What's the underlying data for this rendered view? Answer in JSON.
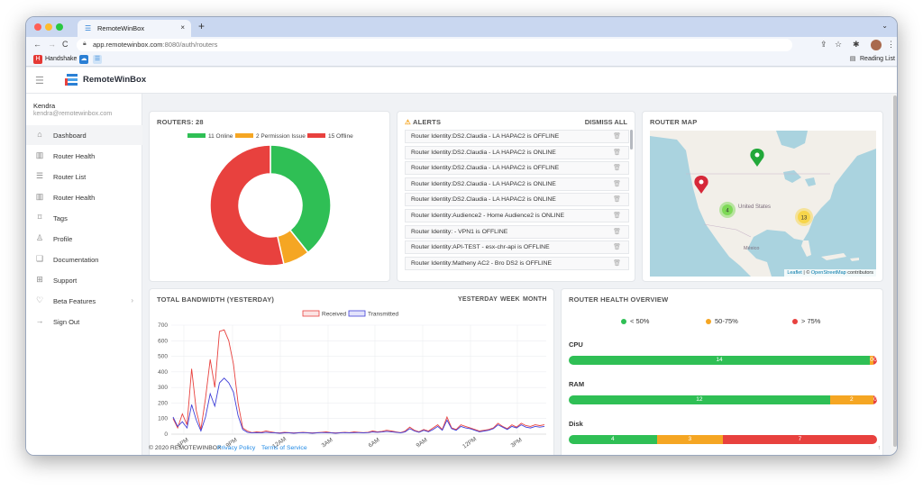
{
  "browser": {
    "tab_title": "RemoteWinBox",
    "new_tab": "+",
    "tab_close": "×",
    "url_host": "app.remotewinbox.com",
    "url_rest": ":8080/auth/routers",
    "bookmarks": [
      {
        "label": "Handshake",
        "icon": "handshake-icon",
        "color": "#e53935"
      }
    ],
    "reading_list": "Reading List"
  },
  "app": {
    "logo_text": "RemoteWinBox",
    "user": {
      "name": "Kendra",
      "email": "kendra@remotewinbox.com"
    },
    "menu": [
      {
        "label": "Dashboard",
        "icon": "home-icon",
        "glyph": "⌂",
        "active": true
      },
      {
        "label": "Router Health",
        "icon": "bar-chart-icon",
        "glyph": "▥",
        "active": false
      },
      {
        "label": "Router List",
        "icon": "list-icon",
        "glyph": "☰",
        "active": false
      },
      {
        "label": "Router Health",
        "icon": "bar-chart-icon",
        "glyph": "▥",
        "active": false
      },
      {
        "label": "Tags",
        "icon": "tag-icon",
        "glyph": "⌑",
        "active": false
      },
      {
        "label": "Profile",
        "icon": "user-icon",
        "glyph": "♙",
        "active": false
      },
      {
        "label": "Documentation",
        "icon": "book-icon",
        "glyph": "❑",
        "active": false
      },
      {
        "label": "Support",
        "icon": "support-icon",
        "glyph": "⊞",
        "active": false
      },
      {
        "label": "Beta Features",
        "icon": "bulb-icon",
        "glyph": "♡",
        "active": false,
        "chevron": "›"
      },
      {
        "label": "Sign Out",
        "icon": "sign-out-icon",
        "glyph": "→",
        "active": false
      }
    ]
  },
  "routers_card": {
    "title": "ROUTERS: 28",
    "legend": [
      {
        "label": "11 Online",
        "color": "#2fbf55"
      },
      {
        "label": "2 Permission Issue",
        "color": "#f5a623"
      },
      {
        "label": "15 Offline",
        "color": "#e8413e"
      }
    ]
  },
  "alerts_card": {
    "title": "ALERTS",
    "dismiss_label": "DISMISS ALL",
    "items": [
      "Router Identity:DS2.Claudia - LA HAPAC2 is OFFLINE",
      "Router Identity:DS2.Claudia - LA HAPAC2 is ONLINE",
      "Router Identity:DS2.Claudia - LA HAPAC2 is OFFLINE",
      "Router Identity:DS2.Claudia - LA HAPAC2 is ONLINE",
      "Router Identity:DS2.Claudia - LA HAPAC2 is ONLINE",
      "Router Identity:Audience2 - Home Audience2 is ONLINE",
      "Router Identity: - VPN1 is OFFLINE",
      "Router Identity:API-TEST - esx-chr-api is OFFLINE",
      "Router Identity:Matheny AC2 - Bro DS2 is OFFLINE"
    ]
  },
  "map_card": {
    "title": "ROUTER MAP",
    "labels": {
      "country": "United States",
      "mexico": "México"
    },
    "clusters": [
      {
        "count": "4",
        "color": "#7ed957"
      },
      {
        "count": "13",
        "color": "#f7d54a"
      }
    ],
    "attribution": {
      "leaflet": "Leaflet",
      "sep": " | © ",
      "osm": "OpenStreetMap",
      "tail": " contributors"
    }
  },
  "bandwidth_card": {
    "title": "TOTAL BANDWIDTH (YESTERDAY)",
    "controls": [
      "YESTERDAY",
      "WEEK",
      "MONTH"
    ]
  },
  "health_card": {
    "title": "ROUTER HEALTH OVERVIEW",
    "legend": [
      {
        "label": "< 50%",
        "color": "#2fbf55"
      },
      {
        "label": "50-75%",
        "color": "#f5a623"
      },
      {
        "label": "> 75%",
        "color": "#e8413e"
      }
    ],
    "rows": [
      {
        "name": "CPU",
        "segments": [
          {
            "value": 14,
            "color": "#2fbf55"
          },
          {
            "value": 0,
            "color": "#f5a623"
          },
          {
            "value": 0,
            "color": "#e8413e"
          }
        ]
      },
      {
        "name": "RAM",
        "segments": [
          {
            "value": 12,
            "color": "#2fbf55"
          },
          {
            "value": 2,
            "color": "#f5a623"
          },
          {
            "value": 0,
            "color": "#e8413e"
          }
        ]
      },
      {
        "name": "Disk",
        "segments": [
          {
            "value": 4,
            "color": "#2fbf55"
          },
          {
            "value": 3,
            "color": "#f5a623"
          },
          {
            "value": 7,
            "color": "#e8413e"
          }
        ]
      }
    ]
  },
  "footer": {
    "copyright": "© 2020 REMOTEWINBOX",
    "privacy": "Privacy Policy",
    "terms": "Terms of Service",
    "up_arrow": "↑"
  },
  "chart_data": [
    {
      "type": "pie",
      "title": "ROUTERS: 28",
      "labels": [
        "11 Online",
        "2 Permission Issue",
        "15 Offline"
      ],
      "values": [
        11,
        2,
        15
      ],
      "colors": [
        "#2fbf55",
        "#f5a623",
        "#e8413e"
      ],
      "donut": true,
      "legend": "top"
    },
    {
      "type": "line",
      "title": "TOTAL BANDWIDTH (YESTERDAY)",
      "x_ticks": [
        "6PM",
        "9PM",
        "12AM",
        "3AM",
        "6AM",
        "9AM",
        "12PM",
        "3PM"
      ],
      "ylim": [
        0,
        700
      ],
      "y_ticks": [
        0,
        100,
        200,
        300,
        400,
        500,
        600,
        700
      ],
      "legend": "top",
      "grid": true,
      "series": [
        {
          "name": "Received",
          "color": "#e8413e",
          "values": [
            100,
            40,
            130,
            60,
            420,
            150,
            30,
            230,
            480,
            300,
            660,
            670,
            600,
            450,
            200,
            40,
            20,
            10,
            15,
            12,
            20,
            15,
            10,
            8,
            12,
            10,
            8,
            10,
            12,
            10,
            8,
            10,
            12,
            15,
            10,
            8,
            10,
            12,
            10,
            15,
            12,
            10,
            12,
            20,
            15,
            18,
            25,
            20,
            15,
            10,
            20,
            45,
            25,
            15,
            30,
            20,
            40,
            60,
            30,
            110,
            40,
            30,
            60,
            50,
            40,
            30,
            20,
            25,
            30,
            40,
            70,
            50,
            35,
            60,
            45,
            70,
            55,
            50,
            60,
            55,
            60
          ]
        },
        {
          "name": "Transmitted",
          "color": "#4040d8",
          "values": [
            110,
            50,
            80,
            40,
            190,
            90,
            20,
            110,
            260,
            180,
            330,
            360,
            330,
            270,
            120,
            30,
            12,
            8,
            10,
            8,
            12,
            10,
            8,
            6,
            8,
            8,
            6,
            8,
            10,
            8,
            6,
            8,
            10,
            10,
            8,
            6,
            8,
            10,
            8,
            10,
            10,
            8,
            10,
            14,
            12,
            14,
            18,
            15,
            12,
            8,
            15,
            35,
            20,
            12,
            25,
            15,
            30,
            50,
            25,
            90,
            35,
            25,
            50,
            40,
            35,
            25,
            15,
            20,
            25,
            35,
            60,
            45,
            30,
            50,
            40,
            60,
            45,
            40,
            50,
            45,
            50
          ]
        }
      ]
    },
    {
      "type": "bar",
      "title": "ROUTER HEALTH OVERVIEW",
      "orientation": "horizontal",
      "stacked": true,
      "categories": [
        "CPU",
        "RAM",
        "Disk"
      ],
      "series": [
        {
          "name": "< 50%",
          "values": [
            14,
            12,
            4
          ]
        },
        {
          "name": "50-75%",
          "values": [
            0,
            2,
            3
          ]
        },
        {
          "name": "> 75%",
          "values": [
            0,
            0,
            7
          ]
        }
      ]
    }
  ]
}
